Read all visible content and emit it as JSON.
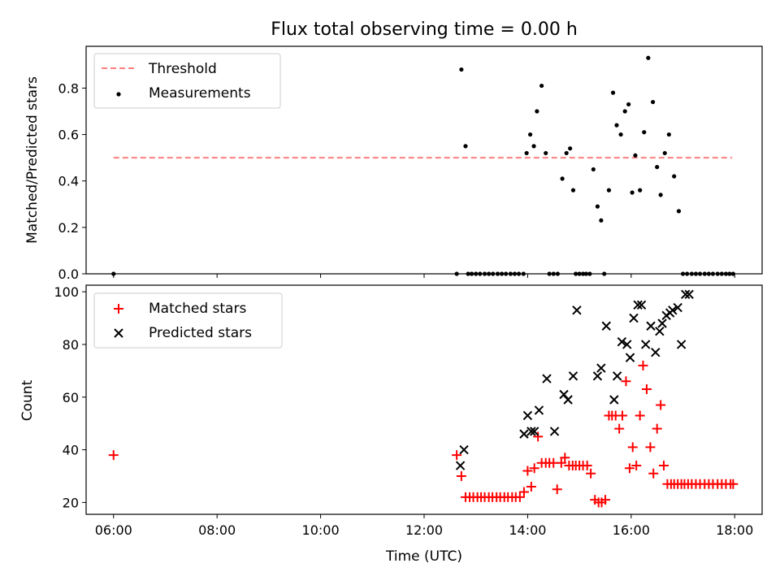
{
  "chart_data": {
    "title": "Flux total observing time = 0.00 h",
    "xlabel": "Time (UTC)",
    "x_ticks": [
      "06:00",
      "08:00",
      "10:00",
      "12:00",
      "14:00",
      "16:00",
      "18:00"
    ],
    "xlim_hours": [
      5.47,
      18.53
    ],
    "panels": [
      {
        "type": "scatter",
        "ylabel": "Matched/Predicted stars",
        "ylim": [
          0,
          0.98
        ],
        "y_ticks": [
          "0.0",
          "0.2",
          "0.4",
          "0.6",
          "0.8"
        ],
        "legend_position": "upper-left",
        "threshold": {
          "name": "Threshold",
          "value": 0.5,
          "x_range_hours": [
            6.0,
            17.95
          ],
          "color": "#ff7f7f"
        },
        "series": [
          {
            "name": "Measurements",
            "color": "#000000",
            "x_hours": [
              6.0,
              12.63,
              12.72,
              12.8,
              12.85,
              12.92,
              13.0,
              13.08,
              13.17,
              13.25,
              13.33,
              13.42,
              13.5,
              13.58,
              13.67,
              13.75,
              13.83,
              13.92,
              13.98,
              14.05,
              14.12,
              14.18,
              14.27,
              14.35,
              14.42,
              14.5,
              14.58,
              14.67,
              14.75,
              14.82,
              14.88,
              14.93,
              15.0,
              15.07,
              15.13,
              15.2,
              15.27,
              15.35,
              15.42,
              15.48,
              15.57,
              15.65,
              15.72,
              15.8,
              15.88,
              15.95,
              16.02,
              16.08,
              16.17,
              16.25,
              16.33,
              16.42,
              16.5,
              16.57,
              16.65,
              16.73,
              16.83,
              16.92,
              17.0,
              17.08,
              17.17,
              17.25,
              17.33,
              17.42,
              17.5,
              17.58,
              17.67,
              17.75,
              17.83,
              17.9,
              17.97
            ],
            "y": [
              0.0,
              0.0,
              0.88,
              0.55,
              0.0,
              0.0,
              0.0,
              0.0,
              0.0,
              0.0,
              0.0,
              0.0,
              0.0,
              0.0,
              0.0,
              0.0,
              0.0,
              0.0,
              0.52,
              0.6,
              0.55,
              0.7,
              0.81,
              0.52,
              0.0,
              0.0,
              0.0,
              0.41,
              0.52,
              0.54,
              0.36,
              0.0,
              0.0,
              0.0,
              0.0,
              0.0,
              0.45,
              0.29,
              0.23,
              0.0,
              0.36,
              0.78,
              0.64,
              0.6,
              0.7,
              0.73,
              0.35,
              0.51,
              0.36,
              0.61,
              0.93,
              0.74,
              0.46,
              0.34,
              0.52,
              0.6,
              0.42,
              0.27,
              0.0,
              0.0,
              0.0,
              0.0,
              0.0,
              0.0,
              0.0,
              0.0,
              0.0,
              0.0,
              0.0,
              0.0,
              0.0
            ]
          }
        ]
      },
      {
        "type": "scatter",
        "ylabel": "Count",
        "ylim": [
          15.5,
          102.5
        ],
        "y_ticks": [
          "20",
          "40",
          "60",
          "80",
          "100"
        ],
        "legend_position": "upper-left",
        "series": [
          {
            "name": "Matched stars",
            "marker": "plus",
            "color": "#ff0000",
            "x_hours": [
              6.0,
              12.63,
              12.72,
              12.8,
              12.88,
              12.95,
              13.03,
              13.1,
              13.17,
              13.25,
              13.32,
              13.4,
              13.47,
              13.55,
              13.62,
              13.7,
              13.77,
              13.85,
              13.93,
              14.0,
              14.07,
              14.13,
              14.2,
              14.27,
              14.35,
              14.42,
              14.5,
              14.57,
              14.65,
              14.72,
              14.8,
              14.87,
              14.93,
              15.0,
              15.07,
              15.15,
              15.22,
              15.3,
              15.37,
              15.43,
              15.5,
              15.57,
              15.63,
              15.7,
              15.77,
              15.83,
              15.9,
              15.97,
              16.03,
              16.1,
              16.17,
              16.23,
              16.3,
              16.37,
              16.43,
              16.5,
              16.57,
              16.63,
              16.7,
              16.77,
              16.83,
              16.9,
              16.97,
              17.03,
              17.1,
              17.17,
              17.25,
              17.33,
              17.42,
              17.5,
              17.58,
              17.67,
              17.75,
              17.83,
              17.92,
              17.97
            ],
            "y": [
              38,
              38,
              30,
              22,
              22,
              22,
              22,
              22,
              22,
              22,
              22,
              22,
              22,
              22,
              22,
              22,
              22,
              22,
              24,
              32,
              26,
              33,
              45,
              35,
              35,
              35,
              35,
              25,
              35,
              37,
              34,
              34,
              34,
              34,
              34,
              34,
              31,
              21,
              20,
              20,
              21,
              53,
              53,
              53,
              48,
              53,
              66,
              33,
              41,
              34,
              53,
              72,
              63,
              41,
              31,
              48,
              57,
              34,
              27,
              27,
              27,
              27,
              27,
              27,
              27,
              27,
              27,
              27,
              27,
              27,
              27,
              27,
              27,
              27,
              27,
              27
            ]
          },
          {
            "name": "Predicted stars",
            "marker": "x",
            "color": "#000000",
            "x_hours": [
              12.7,
              12.77,
              13.93,
              14.0,
              14.07,
              14.13,
              14.22,
              14.37,
              14.52,
              14.7,
              14.78,
              14.88,
              14.95,
              15.35,
              15.42,
              15.52,
              15.67,
              15.73,
              15.82,
              15.92,
              15.98,
              16.05,
              16.13,
              16.2,
              16.28,
              16.38,
              16.47,
              16.55,
              16.6,
              16.68,
              16.75,
              16.8,
              16.9,
              16.97,
              17.05,
              17.12
            ],
            "y": [
              34,
              40,
              46,
              53,
              47,
              47,
              55,
              67,
              47,
              61,
              59,
              68,
              93,
              68,
              71,
              87,
              59,
              68,
              81,
              80,
              75,
              90,
              95,
              95,
              80,
              87,
              77,
              85,
              88,
              91,
              92,
              93,
              94,
              80,
              99,
              99
            ]
          }
        ]
      }
    ]
  }
}
